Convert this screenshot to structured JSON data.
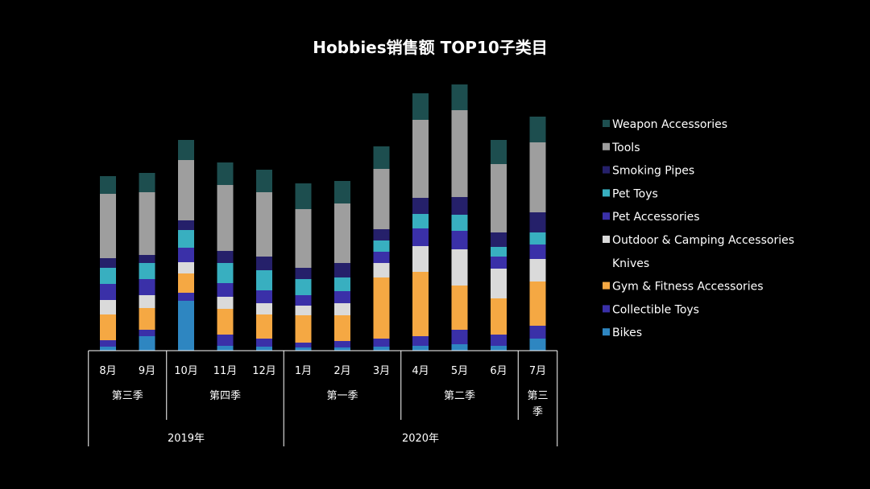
{
  "chart_data": {
    "type": "bar",
    "stacked": true,
    "title": "Hobbies销售额 TOP10子类目",
    "categories": [
      "8月",
      "9月",
      "10月",
      "11月",
      "12月",
      "1月",
      "2月",
      "3月",
      "4月",
      "5月",
      "6月",
      "7月"
    ],
    "quarters": [
      {
        "label": "第三季",
        "span": 2
      },
      {
        "label": "第四季",
        "span": 3
      },
      {
        "label": "第一季",
        "span": 3
      },
      {
        "label": "第二季",
        "span": 3
      },
      {
        "label": "第三季",
        "span": 1
      }
    ],
    "years": [
      {
        "label": "2019年",
        "span": 5
      },
      {
        "label": "2020年",
        "span": 7
      }
    ],
    "legend_position": "right",
    "grid": false,
    "series": [
      {
        "name": "Bikes",
        "color": "#2E86C1",
        "values": [
          5,
          18,
          62,
          6,
          5,
          4,
          4,
          5,
          6,
          8,
          6,
          15
        ]
      },
      {
        "name": "Collectible Toys",
        "color": "#3A30A8",
        "values": [
          8,
          8,
          10,
          14,
          10,
          6,
          8,
          10,
          12,
          18,
          14,
          16
        ]
      },
      {
        "name": "Gym & Fitness Accessories",
        "color": "#F5A843",
        "values": [
          32,
          27,
          24,
          32,
          30,
          34,
          32,
          76,
          80,
          55,
          45,
          55
        ]
      },
      {
        "name": "Knives",
        "color": "#000000",
        "values": [
          0,
          0,
          0,
          0,
          0,
          0,
          0,
          0,
          0,
          0,
          0,
          0
        ]
      },
      {
        "name": "Outdoor & Camping Accessories",
        "color": "#DADADA",
        "values": [
          18,
          16,
          14,
          15,
          14,
          12,
          15,
          18,
          32,
          45,
          37,
          28
        ]
      },
      {
        "name": "Pet Accessories",
        "color": "#3A30A8",
        "values": [
          20,
          20,
          18,
          17,
          16,
          13,
          15,
          14,
          22,
          23,
          15,
          18
        ]
      },
      {
        "name": "Pet Toys",
        "color": "#38AFC0",
        "values": [
          20,
          20,
          22,
          25,
          25,
          20,
          17,
          14,
          18,
          20,
          12,
          15
        ]
      },
      {
        "name": "Smoking Pipes",
        "color": "#25206A",
        "values": [
          12,
          10,
          12,
          15,
          17,
          14,
          18,
          14,
          20,
          22,
          18,
          25
        ]
      },
      {
        "name": "Tools",
        "color": "#9E9E9E",
        "values": [
          80,
          78,
          75,
          82,
          80,
          73,
          74,
          75,
          97,
          108,
          85,
          87
        ]
      },
      {
        "name": "Weapon Accessories",
        "color": "#1D4E4F",
        "values": [
          22,
          24,
          25,
          28,
          28,
          32,
          28,
          28,
          33,
          32,
          30,
          32
        ]
      }
    ]
  }
}
